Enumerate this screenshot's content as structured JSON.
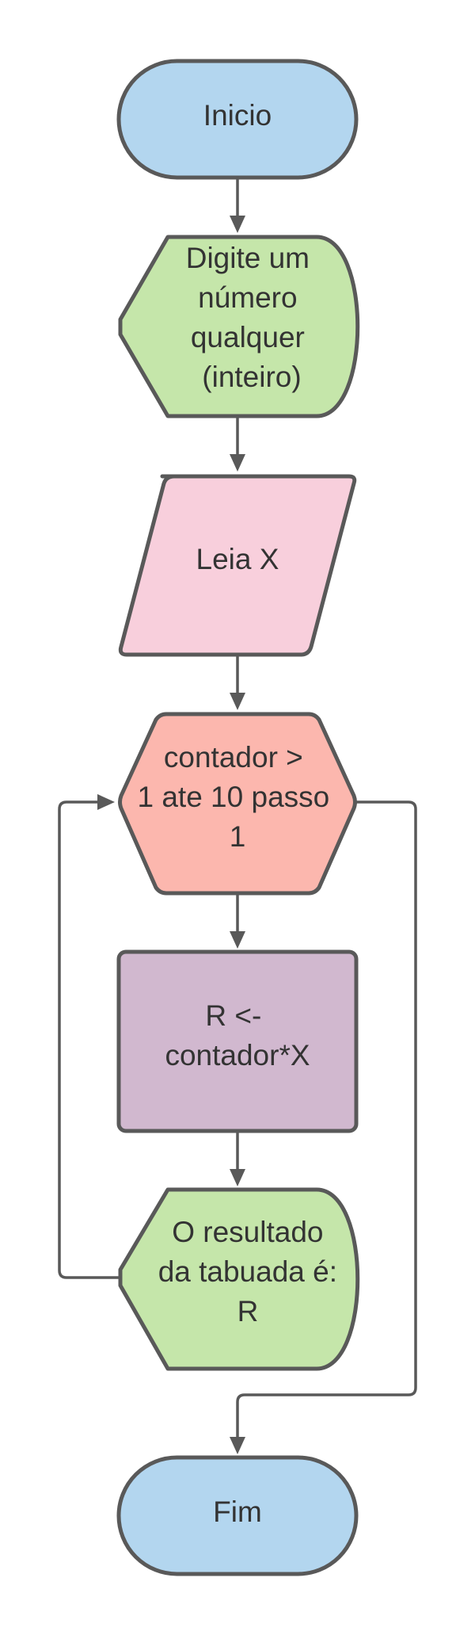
{
  "diagram": {
    "nodes": {
      "start": {
        "lines": [
          "Inicio"
        ],
        "color": "#b3d6ef"
      },
      "prompt": {
        "lines": [
          "Digite um",
          "número",
          "qualquer",
          " (inteiro)"
        ],
        "color": "#c5e6aa"
      },
      "read": {
        "lines": [
          "Leia X"
        ],
        "color": "#f8cfdc"
      },
      "loop": {
        "lines": [
          "contador >",
          "1 ate 10 passo",
          "1"
        ],
        "color": "#fcb7ae"
      },
      "calc": {
        "lines": [
          "R <-",
          "contador*X"
        ],
        "color": "#d1b8cf"
      },
      "output": {
        "lines": [
          "O resultado",
          "da tabuada é:",
          "R"
        ],
        "color": "#c5e6aa"
      },
      "end": {
        "lines": [
          "Fim"
        ],
        "color": "#b3d6ef"
      }
    },
    "edges": [
      {
        "from": "start",
        "to": "prompt"
      },
      {
        "from": "prompt",
        "to": "read"
      },
      {
        "from": "read",
        "to": "loop"
      },
      {
        "from": "loop",
        "to": "calc"
      },
      {
        "from": "calc",
        "to": "output"
      },
      {
        "from": "output",
        "to": "loop"
      },
      {
        "from": "loop",
        "to": "end"
      }
    ],
    "stroke_color": "#595959",
    "text_color": "#333333"
  }
}
